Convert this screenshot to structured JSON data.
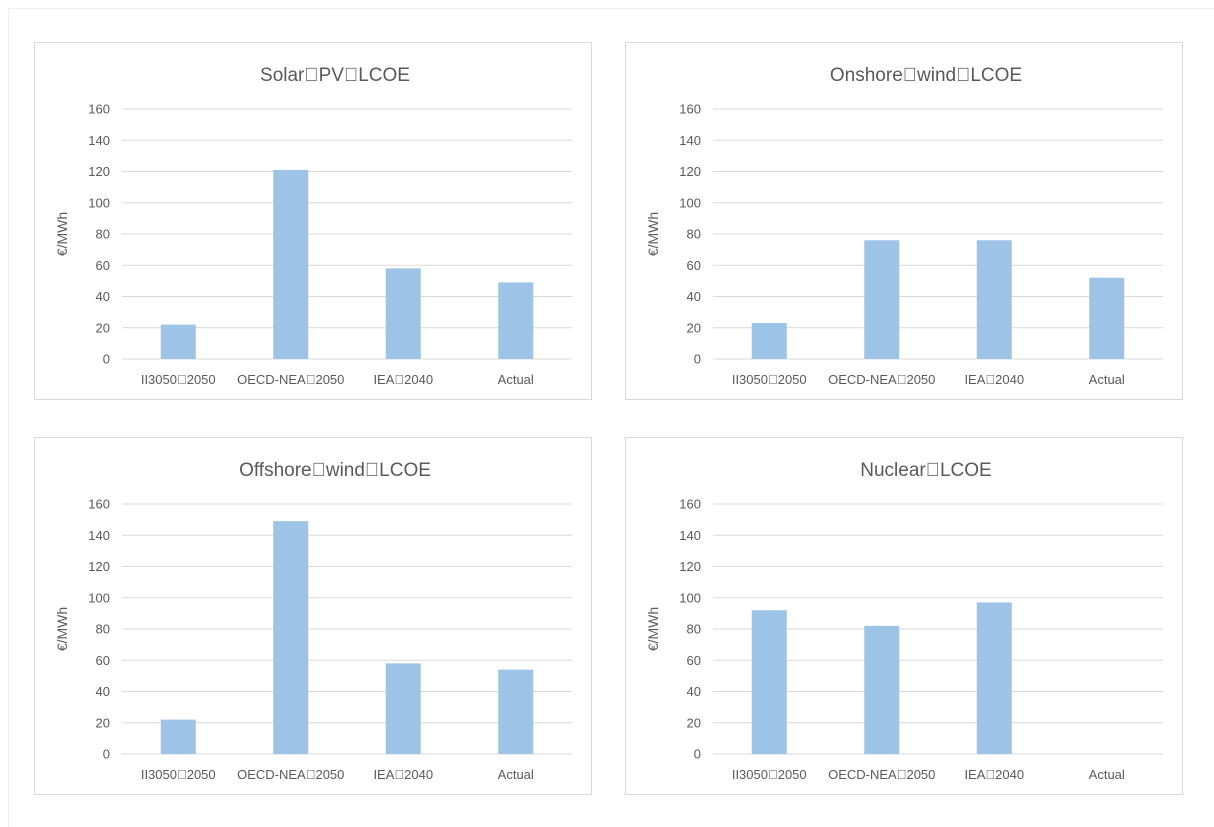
{
  "chart_data": [
    {
      "type": "bar",
      "title": "Solar\u0000PV\u0000LCOE",
      "xlabel": "",
      "ylabel": "€/MWh",
      "categories": [
        "II3050\u00002050",
        "OECD-NEA\u00002050",
        "IEA\u00002040",
        "Actual"
      ],
      "values": [
        22,
        121,
        58,
        49
      ],
      "ylim": [
        0,
        160
      ],
      "yticks": [
        0,
        20,
        40,
        60,
        80,
        100,
        120,
        140,
        160
      ],
      "grid": true
    },
    {
      "type": "bar",
      "title": "Onshore\u0000wind\u0000LCOE",
      "xlabel": "",
      "ylabel": "€/MWh",
      "categories": [
        "II3050\u00002050",
        "OECD-NEA\u00002050",
        "IEA\u00002040",
        "Actual"
      ],
      "values": [
        23,
        76,
        76,
        52
      ],
      "ylim": [
        0,
        160
      ],
      "yticks": [
        0,
        20,
        40,
        60,
        80,
        100,
        120,
        140,
        160
      ],
      "grid": true
    },
    {
      "type": "bar",
      "title": "Offshore\u0000wind\u0000LCOE",
      "xlabel": "",
      "ylabel": "€/MWh",
      "categories": [
        "II3050\u00002050",
        "OECD-NEA\u00002050",
        "IEA\u00002040",
        "Actual"
      ],
      "values": [
        22,
        149,
        58,
        54
      ],
      "ylim": [
        0,
        160
      ],
      "yticks": [
        0,
        20,
        40,
        60,
        80,
        100,
        120,
        140,
        160
      ],
      "grid": true
    },
    {
      "type": "bar",
      "title": "Nuclear\u0000LCOE",
      "xlabel": "",
      "ylabel": "€/MWh",
      "categories": [
        "II3050\u00002050",
        "OECD-NEA\u00002050",
        "IEA\u00002040",
        "Actual"
      ],
      "values": [
        92,
        82,
        97,
        null
      ],
      "ylim": [
        0,
        160
      ],
      "yticks": [
        0,
        20,
        40,
        60,
        80,
        100,
        120,
        140,
        160
      ],
      "grid": true
    }
  ],
  "colors": {
    "bar": "#9dc3e6",
    "grid": "#d9d9d9",
    "text": "#595959",
    "panel_border": "#d9d9d9"
  }
}
